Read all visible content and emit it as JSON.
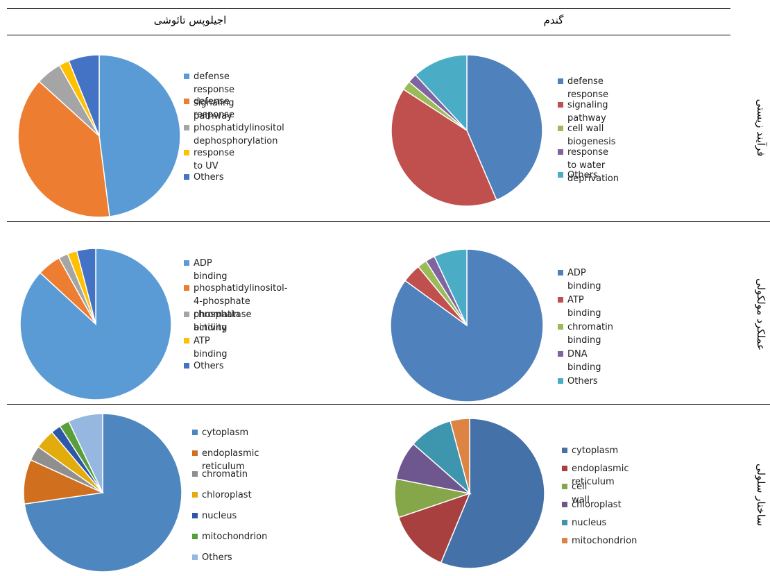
{
  "header": {
    "col_left": "اجیلوپس تائوشی",
    "col_right": "گندم"
  },
  "rows": {
    "r1": "فرآیند زیستی",
    "r2": "عملکرد مولکولی",
    "r3": "ساختار سلولی"
  },
  "chart_data": [
    {
      "type": "pie",
      "title": "",
      "section": "فرآیند زیستی",
      "organism": "اجیلوپس تائوشی",
      "labels": [
        "defense response signaling pathway",
        "defense response",
        "phosphatidylinositol dephosphorylation",
        "response to UV",
        "Others"
      ],
      "values": [
        47,
        38,
        5,
        2,
        6
      ],
      "colors": [
        "#5b9bd5",
        "#ed7d31",
        "#a5a5a5",
        "#ffc000",
        "#4472c4"
      ],
      "legend": "right"
    },
    {
      "type": "pie",
      "title": "",
      "section": "فرآیند زیستی",
      "organism": "گندم",
      "labels": [
        "defense response",
        "signaling pathway",
        "cell wall biogenesis",
        "response to water deprivation",
        "Others"
      ],
      "values": [
        44,
        41,
        2,
        2,
        12
      ],
      "colors": [
        "#4f81bd",
        "#c0504d",
        "#9bbb59",
        "#8064a2",
        "#4bacc6"
      ],
      "legend": "right"
    },
    {
      "type": "pie",
      "title": "",
      "section": "عملکرد مولکولی",
      "organism": "اجیلوپس تائوشی",
      "labels": [
        "ADP binding",
        "phosphatidylinositol-4-phosphate phosphatase activity",
        "chromatin binding",
        "ATP binding",
        "Others"
      ],
      "values": [
        86,
        5,
        2,
        2,
        4
      ],
      "colors": [
        "#5b9bd5",
        "#ed7d31",
        "#a5a5a5",
        "#ffc000",
        "#4472c4"
      ],
      "legend": "right"
    },
    {
      "type": "pie",
      "title": "",
      "section": "عملکرد مولکولی",
      "organism": "گندم",
      "labels": [
        "ADP binding",
        "ATP binding",
        "chromatin binding",
        "DNA binding",
        "Others"
      ],
      "values": [
        85,
        4,
        2,
        2,
        7
      ],
      "colors": [
        "#4f81bd",
        "#c0504d",
        "#9bbb59",
        "#8064a2",
        "#4bacc6"
      ],
      "legend": "right"
    },
    {
      "type": "pie",
      "title": "",
      "section": "ساختار سلولی",
      "organism": "اجیلوپس تائوشی",
      "labels": [
        "cytoplasm",
        "endoplasmic reticulum",
        "chromatin",
        "chloroplast",
        "nucleus",
        "mitochondrion",
        "Others"
      ],
      "values": [
        72,
        9,
        3,
        4,
        2,
        2,
        7
      ],
      "colors": [
        "#4e86c0",
        "#d0701e",
        "#8f8f8f",
        "#e1ac0c",
        "#2f57a8",
        "#5a9e3a",
        "#96b7e0"
      ],
      "legend": "right"
    },
    {
      "type": "pie",
      "title": "",
      "section": "ساختار سلولی",
      "organism": "گندم",
      "labels": [
        "cytoplasm",
        "endoplasmic reticulum",
        "cell wall",
        "chloroplast",
        "nucleus",
        "mitochondrion"
      ],
      "values": [
        54,
        13,
        8,
        8,
        9,
        4
      ],
      "colors": [
        "#4472a8",
        "#a84040",
        "#86a64a",
        "#6e578e",
        "#3d96ad",
        "#dd8344"
      ],
      "legend": "right"
    }
  ]
}
